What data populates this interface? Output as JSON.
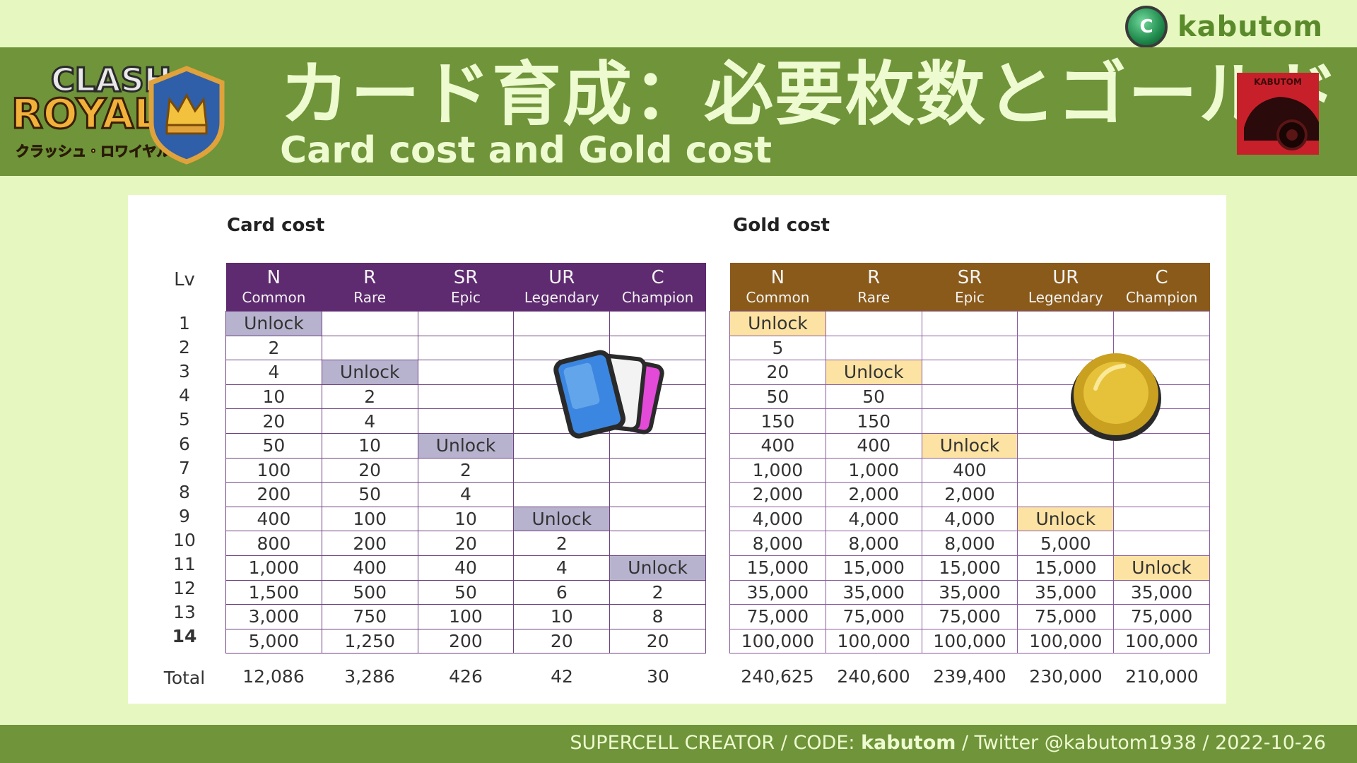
{
  "brand": {
    "name": "kabutom",
    "icon": "supercell-creator-c-icon",
    "icon_letter": "C"
  },
  "header": {
    "logo_top": "CLASH",
    "logo_bottom": "ROYALE",
    "logo_sub": "クラッシュ・ロワイヤル",
    "title_jp": "カード育成：必要枚数とゴールド",
    "title_en": "Card cost and Gold cost",
    "corner_label": "KABUTOM"
  },
  "card_cost": {
    "title": "Card cost",
    "lv_label": "Lv",
    "columns": [
      {
        "code": "N",
        "name": "Common"
      },
      {
        "code": "R",
        "name": "Rare"
      },
      {
        "code": "SR",
        "name": "Epic"
      },
      {
        "code": "UR",
        "name": "Legendary"
      },
      {
        "code": "C",
        "name": "Champion"
      }
    ],
    "rows": [
      [
        "Unlock",
        "",
        "",
        "",
        ""
      ],
      [
        "2",
        "",
        "",
        "",
        ""
      ],
      [
        "4",
        "Unlock",
        "",
        "",
        ""
      ],
      [
        "10",
        "2",
        "",
        "",
        ""
      ],
      [
        "20",
        "4",
        "",
        "",
        ""
      ],
      [
        "50",
        "10",
        "Unlock",
        "",
        ""
      ],
      [
        "100",
        "20",
        "2",
        "",
        ""
      ],
      [
        "200",
        "50",
        "4",
        "",
        ""
      ],
      [
        "400",
        "100",
        "10",
        "Unlock",
        ""
      ],
      [
        "800",
        "200",
        "20",
        "2",
        ""
      ],
      [
        "1,000",
        "400",
        "40",
        "4",
        "Unlock"
      ],
      [
        "1,500",
        "500",
        "50",
        "6",
        "2"
      ],
      [
        "3,000",
        "750",
        "100",
        "10",
        "8"
      ],
      [
        "5,000",
        "1,250",
        "200",
        "20",
        "20"
      ]
    ],
    "totals": [
      "12,086",
      "3,286",
      "426",
      "42",
      "30"
    ]
  },
  "gold_cost": {
    "title": "Gold cost",
    "columns": [
      {
        "code": "N",
        "name": "Common"
      },
      {
        "code": "R",
        "name": "Rare"
      },
      {
        "code": "SR",
        "name": "Epic"
      },
      {
        "code": "UR",
        "name": "Legendary"
      },
      {
        "code": "C",
        "name": "Champion"
      }
    ],
    "rows": [
      [
        "Unlock",
        "",
        "",
        "",
        ""
      ],
      [
        "5",
        "",
        "",
        "",
        ""
      ],
      [
        "20",
        "Unlock",
        "",
        "",
        ""
      ],
      [
        "50",
        "50",
        "",
        "",
        ""
      ],
      [
        "150",
        "150",
        "",
        "",
        ""
      ],
      [
        "400",
        "400",
        "Unlock",
        "",
        ""
      ],
      [
        "1,000",
        "1,000",
        "400",
        "",
        ""
      ],
      [
        "2,000",
        "2,000",
        "2,000",
        "",
        ""
      ],
      [
        "4,000",
        "4,000",
        "4,000",
        "Unlock",
        ""
      ],
      [
        "8,000",
        "8,000",
        "8,000",
        "5,000",
        ""
      ],
      [
        "15,000",
        "15,000",
        "15,000",
        "15,000",
        "Unlock"
      ],
      [
        "35,000",
        "35,000",
        "35,000",
        "35,000",
        "35,000"
      ],
      [
        "75,000",
        "75,000",
        "75,000",
        "75,000",
        "75,000"
      ],
      [
        "100,000",
        "100,000",
        "100,000",
        "100,000",
        "100,000"
      ]
    ],
    "totals": [
      "240,625",
      "240,600",
      "239,400",
      "230,000",
      "210,000"
    ]
  },
  "levels": [
    "1",
    "2",
    "3",
    "4",
    "5",
    "6",
    "7",
    "8",
    "9",
    "10",
    "11",
    "12",
    "13",
    "14"
  ],
  "total_label": "Total",
  "footer": {
    "prefix": "SUPERCELL CREATOR / CODE: ",
    "code": "kabutom",
    "suffix": " / Twitter @kabutom1938 / 2022-10-26"
  },
  "colors": {
    "background": "#e6f8bf",
    "band": "#6f943a",
    "card_header": "#5e2a70",
    "gold_header": "#8a5a1a",
    "unlock_card": "#b7b3cf",
    "unlock_gold": "#fde3a3"
  }
}
